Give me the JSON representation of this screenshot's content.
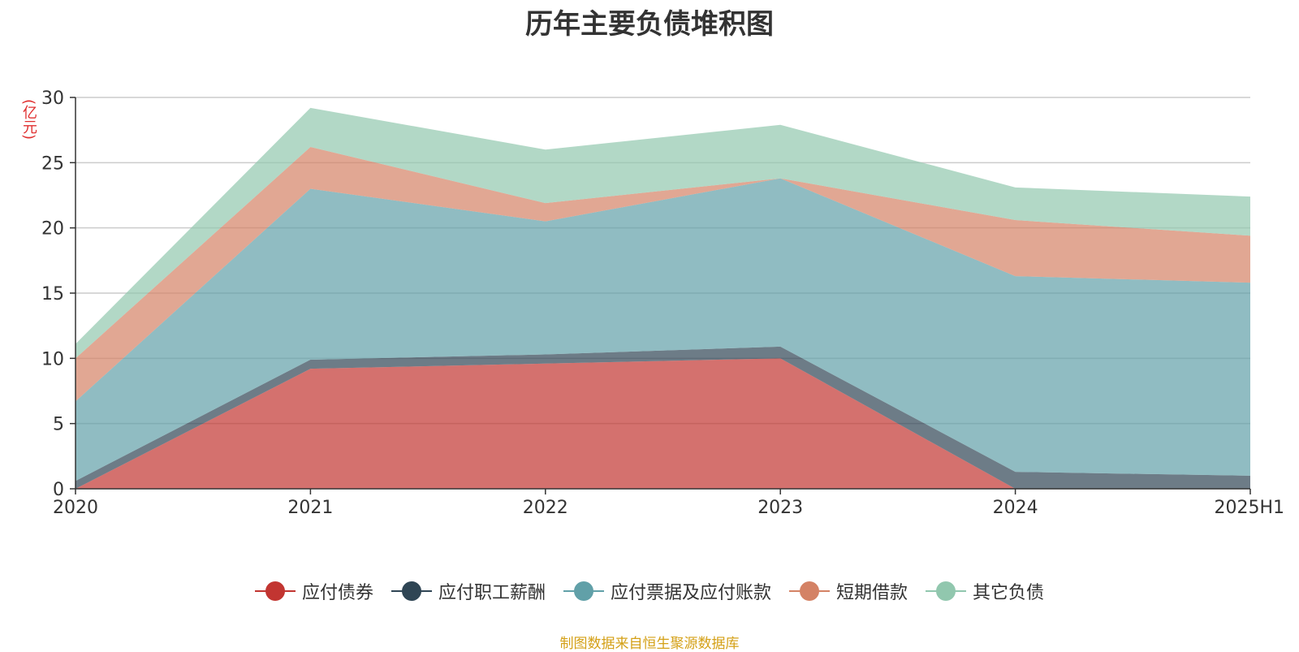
{
  "chart_data": {
    "type": "area",
    "stacked": true,
    "title": "历年主要负债堆积图",
    "unit_label": "(亿元)",
    "categories": [
      "2020",
      "2021",
      "2022",
      "2023",
      "2024",
      "2025H1"
    ],
    "ylim": [
      0,
      30
    ],
    "yticks": [
      0,
      5,
      10,
      15,
      20,
      25,
      30
    ],
    "grid": true,
    "legend_position": "bottom",
    "series": [
      {
        "name": "应付债券",
        "color": "#c23531",
        "values": [
          0,
          9.2,
          9.6,
          10.0,
          0,
          0
        ]
      },
      {
        "name": "应付职工薪酬",
        "color": "#2f4554",
        "values": [
          0.6,
          0.7,
          0.7,
          0.9,
          1.3,
          1.0
        ]
      },
      {
        "name": "应付票据及应付账款",
        "color": "#61a0a8",
        "values": [
          6.1,
          13.1,
          10.2,
          12.9,
          15.0,
          14.8
        ]
      },
      {
        "name": "短期借款",
        "color": "#d48265",
        "values": [
          3.3,
          3.2,
          1.4,
          0,
          4.3,
          3.6
        ]
      },
      {
        "name": "其它负债",
        "color": "#91c7ae",
        "values": [
          1.1,
          3.0,
          4.1,
          4.1,
          2.5,
          3.0
        ]
      }
    ]
  },
  "footer": {
    "note": "制图数据来自恒生聚源数据库"
  }
}
